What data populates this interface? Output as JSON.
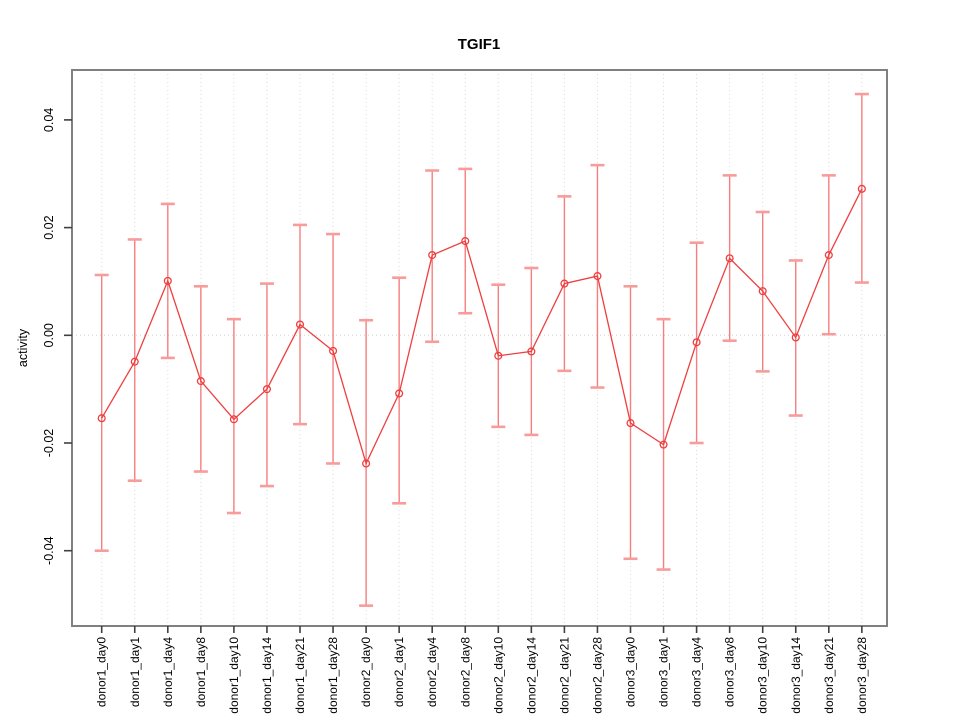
{
  "chart_data": {
    "type": "line",
    "title": "TGIF1",
    "ylabel": "activity",
    "legend": "none",
    "grid": "vertical dotted gridline at each category",
    "zero_line": "horizontal dotted line at y=0",
    "categories": [
      "donor1_day0",
      "donor1_day1",
      "donor1_day4",
      "donor1_day8",
      "donor1_day10",
      "donor1_day14",
      "donor1_day21",
      "donor1_day28",
      "donor2_day0",
      "donor2_day1",
      "donor2_day4",
      "donor2_day8",
      "donor2_day10",
      "donor2_day14",
      "donor2_day21",
      "donor2_day28",
      "donor3_day0",
      "donor3_day1",
      "donor3_day4",
      "donor3_day8",
      "donor3_day10",
      "donor3_day14",
      "donor3_day21",
      "donor3_day28"
    ],
    "values": [
      -0.0154,
      -0.0049,
      0.0101,
      -0.0085,
      -0.0156,
      -0.01,
      0.002,
      -0.0029,
      -0.0238,
      -0.0108,
      0.0149,
      0.0175,
      -0.0038,
      -0.003,
      0.0096,
      0.011,
      -0.0163,
      -0.0203,
      -0.0013,
      0.0143,
      0.0082,
      -0.0004,
      0.0149,
      0.0272
    ],
    "error_low": [
      -0.04,
      -0.027,
      -0.0042,
      -0.0253,
      -0.033,
      -0.028,
      -0.0165,
      -0.0238,
      -0.0502,
      -0.0312,
      -0.0012,
      0.0041,
      -0.017,
      -0.0185,
      -0.0066,
      -0.0097,
      -0.0415,
      -0.0435,
      -0.02,
      -0.001,
      -0.0067,
      -0.0149,
      0.0002,
      0.0098
    ],
    "error_high": [
      0.0112,
      0.0178,
      0.0244,
      0.0091,
      0.003,
      0.0096,
      0.0205,
      0.0188,
      0.0028,
      0.0107,
      0.0306,
      0.0309,
      0.0094,
      0.0125,
      0.0258,
      0.0316,
      0.0091,
      0.003,
      0.0172,
      0.0297,
      0.0229,
      0.0139,
      0.0297,
      0.0448
    ],
    "yticks": [
      0.04,
      0.02,
      0.0,
      -0.02,
      -0.04
    ],
    "ytick_labels": [
      "0.04",
      "0.02",
      "0.00",
      "-0.02",
      "-0.04"
    ],
    "ylim": [
      -0.054,
      0.0493
    ],
    "colors": {
      "series": "#ee3f3f",
      "error_bar_stem": "#f57f7f",
      "error_bar_cap": "#f89b9b",
      "grid": "#dcdcdc",
      "zero_line": "#d4d4d4",
      "axis_box": "#808080",
      "tick": "#404040",
      "text": "#000000",
      "background": "#ffffff"
    }
  }
}
